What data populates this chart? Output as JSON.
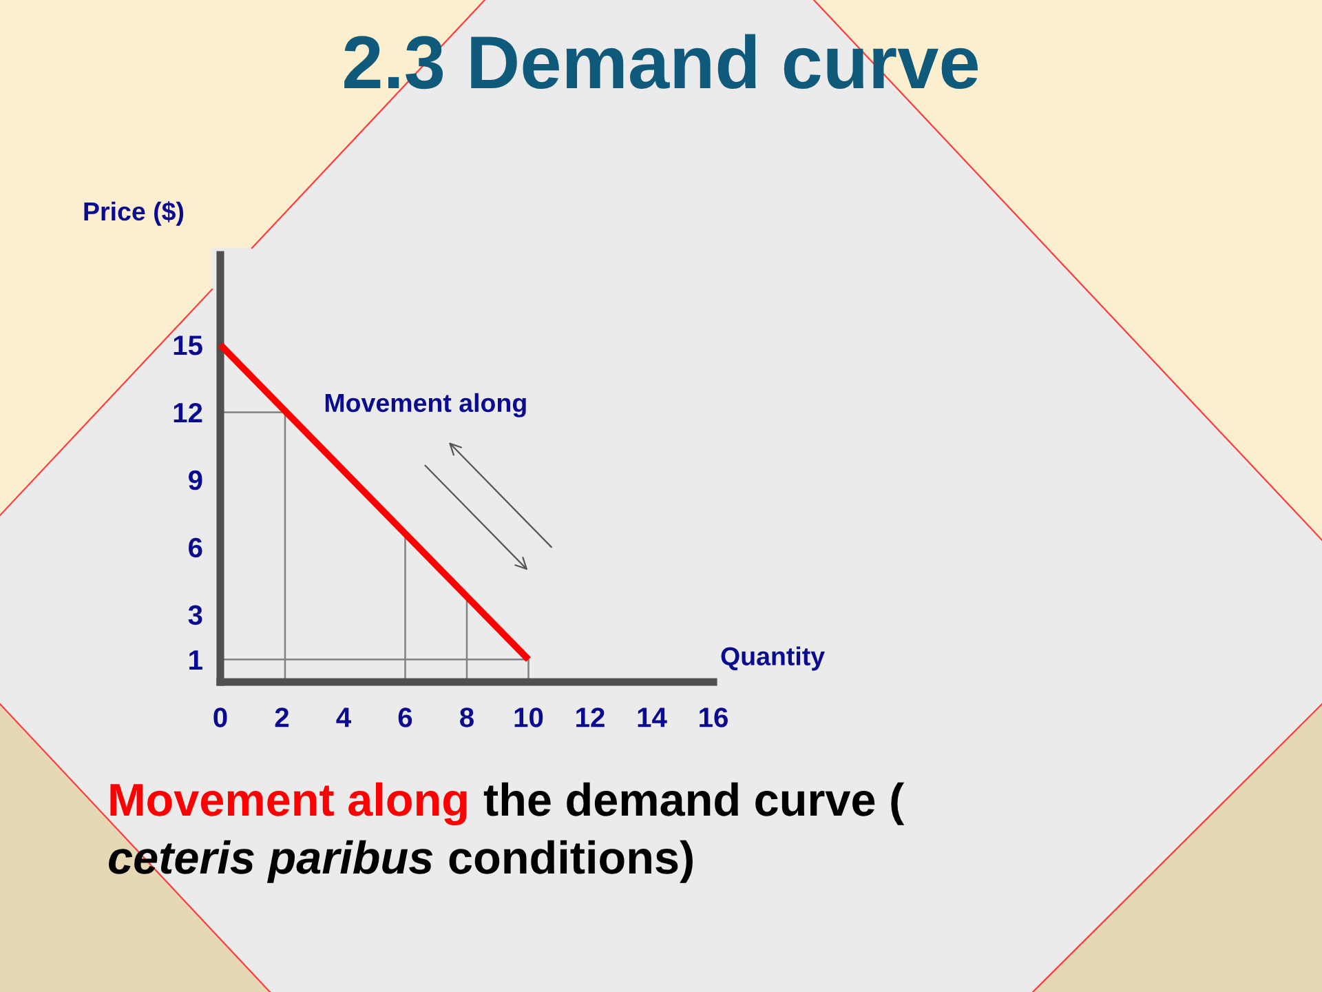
{
  "chart_data": {
    "type": "line",
    "title": "2.3 Demand curve",
    "xlabel": "Quantity",
    "ylabel": "Price ($)",
    "xlim": [
      0,
      16
    ],
    "xticks": [
      0,
      2,
      4,
      6,
      8,
      10,
      12,
      14,
      16
    ],
    "ylim": [
      0,
      19
    ],
    "yticks": [
      1,
      3,
      6,
      9,
      12,
      15
    ],
    "series": [
      {
        "color": "#ff0000",
        "x": [
          0,
          10
        ],
        "values": [
          15,
          1
        ]
      },
      {
        "color": "#808080",
        "x": [
          0,
          2.1,
          2.1
        ],
        "values": [
          12,
          12,
          0
        ]
      },
      {
        "color": "#808080",
        "x": [
          6,
          6
        ],
        "values": [
          6.6,
          0
        ]
      },
      {
        "color": "#808080",
        "x": [
          8,
          8
        ],
        "values": [
          3.8,
          0
        ]
      },
      {
        "color": "#808080",
        "x": [
          0,
          10,
          10
        ],
        "values": [
          1,
          1,
          0
        ]
      }
    ],
    "annotations": [
      "Movement along",
      "Movement along ",
      "the demand curve (",
      "ceteris paribus",
      " conditions)"
    ],
    "line_style": "solid"
  }
}
